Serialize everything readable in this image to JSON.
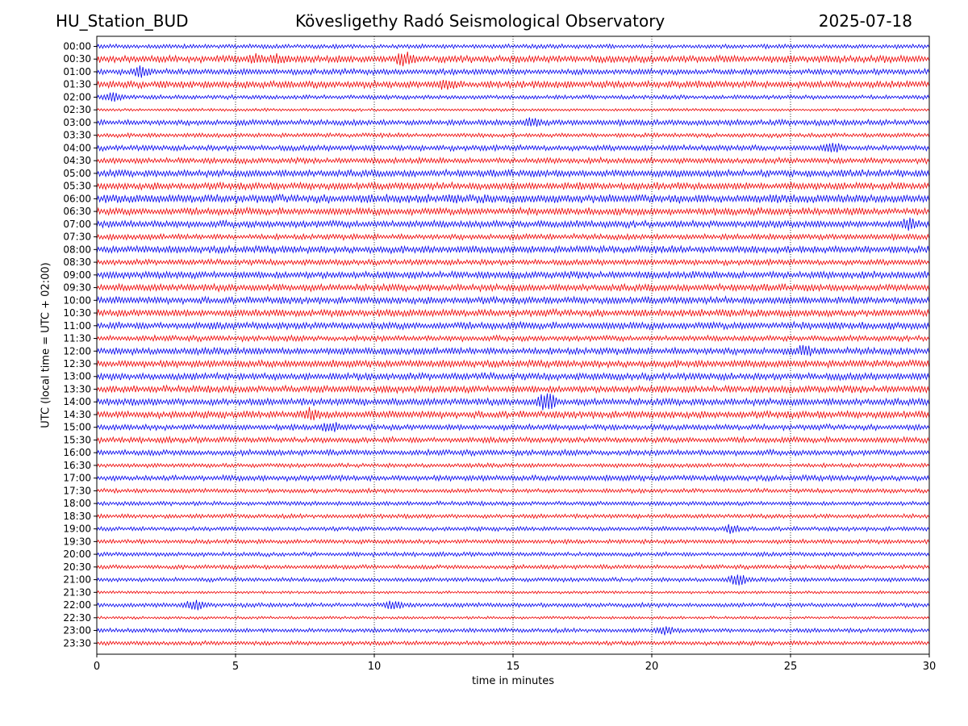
{
  "header": {
    "station": "HU_Station_BUD",
    "observatory": "Kövesligethy Radó Seismological Observatory",
    "date": "2025-07-18"
  },
  "chart_data": {
    "type": "line",
    "title": "Kövesligethy Radó Seismological Observatory",
    "xlabel": "time in minutes",
    "ylabel": "UTC (local time = UTC + 02:00)",
    "xlim": [
      0,
      30
    ],
    "xticks": [
      0,
      5,
      10,
      15,
      20,
      25,
      30
    ],
    "grid": "vertical dotted at x ticks",
    "colors": [
      "#0000ee",
      "#ee0000"
    ],
    "rows": [
      "00:00",
      "00:30",
      "01:00",
      "01:30",
      "02:00",
      "02:30",
      "03:00",
      "03:30",
      "04:00",
      "04:30",
      "05:00",
      "05:30",
      "06:00",
      "06:30",
      "07:00",
      "07:30",
      "08:00",
      "08:30",
      "09:00",
      "09:30",
      "10:00",
      "10:30",
      "11:00",
      "11:30",
      "12:00",
      "12:30",
      "13:00",
      "13:30",
      "14:00",
      "14:30",
      "15:00",
      "15:30",
      "16:00",
      "16:30",
      "17:00",
      "17:30",
      "18:00",
      "18:30",
      "19:00",
      "19:30",
      "20:00",
      "20:30",
      "21:00",
      "21:30",
      "22:00",
      "22:30",
      "23:00",
      "23:30"
    ],
    "noise_level": [
      3,
      5,
      4,
      5,
      3,
      2,
      4,
      3,
      4,
      4,
      5,
      5,
      6,
      5,
      5,
      4,
      5,
      4,
      5,
      5,
      5,
      5,
      5,
      4,
      5,
      5,
      5,
      5,
      5,
      5,
      4,
      4,
      4,
      3,
      4,
      3,
      3,
      3,
      3,
      3,
      3,
      3,
      3,
      2,
      3,
      2,
      3,
      3
    ],
    "events": [
      {
        "row": "00:30",
        "minute": 11.1,
        "amplitude": 8
      },
      {
        "row": "00:30",
        "minute": 6.5,
        "amplitude": 6
      },
      {
        "row": "00:30",
        "minute": 5.7,
        "amplitude": 5
      },
      {
        "row": "01:00",
        "minute": 1.6,
        "amplitude": 6
      },
      {
        "row": "01:30",
        "minute": 12.6,
        "amplitude": 6
      },
      {
        "row": "02:00",
        "minute": 0.6,
        "amplitude": 5
      },
      {
        "row": "03:00",
        "minute": 15.7,
        "amplitude": 5
      },
      {
        "row": "04:00",
        "minute": 26.5,
        "amplitude": 6
      },
      {
        "row": "07:00",
        "minute": 29.3,
        "amplitude": 6
      },
      {
        "row": "12:00",
        "minute": 25.5,
        "amplitude": 6
      },
      {
        "row": "14:00",
        "minute": 16.2,
        "amplitude": 11
      },
      {
        "row": "14:30",
        "minute": 7.7,
        "amplitude": 7
      },
      {
        "row": "15:00",
        "minute": 8.4,
        "amplitude": 7
      },
      {
        "row": "19:00",
        "minute": 22.9,
        "amplitude": 5
      },
      {
        "row": "21:00",
        "minute": 23.1,
        "amplitude": 6
      },
      {
        "row": "22:00",
        "minute": 3.5,
        "amplitude": 6
      },
      {
        "row": "22:00",
        "minute": 10.7,
        "amplitude": 5
      },
      {
        "row": "23:00",
        "minute": 20.5,
        "amplitude": 5
      }
    ]
  }
}
